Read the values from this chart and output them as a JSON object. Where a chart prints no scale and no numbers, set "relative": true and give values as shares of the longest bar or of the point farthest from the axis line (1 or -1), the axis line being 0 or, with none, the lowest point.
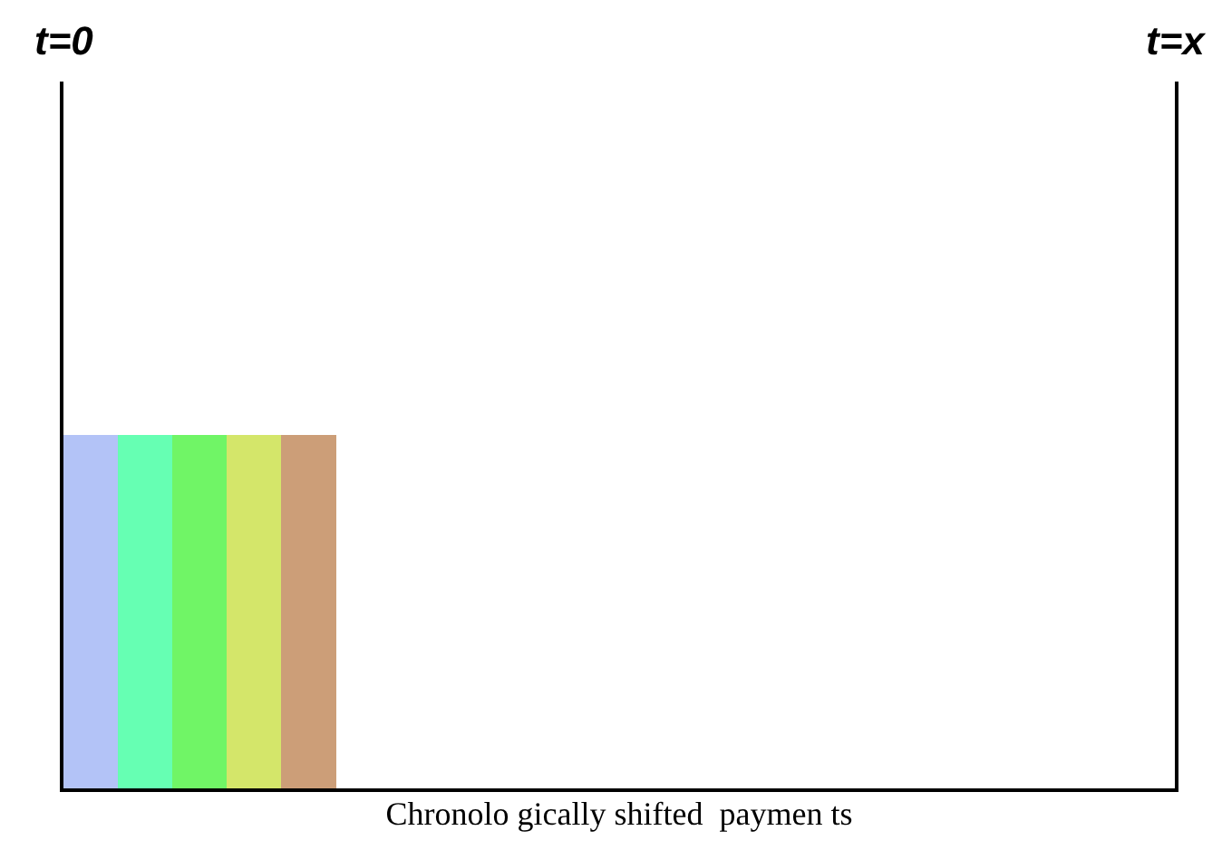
{
  "chart_data": {
    "type": "bar",
    "relative": true,
    "xlabel": "Chronolo gically shifted  paymen ts",
    "categories": [
      null,
      null,
      null,
      null,
      null
    ],
    "values": [
      1,
      1,
      1,
      1,
      1
    ],
    "colors": [
      "#b3c3f7",
      "#66ffb3",
      "#70f566",
      "#d4e66a",
      "#cc9e78"
    ],
    "annotations": [
      "t=0",
      "t=x"
    ],
    "grid": false
  }
}
